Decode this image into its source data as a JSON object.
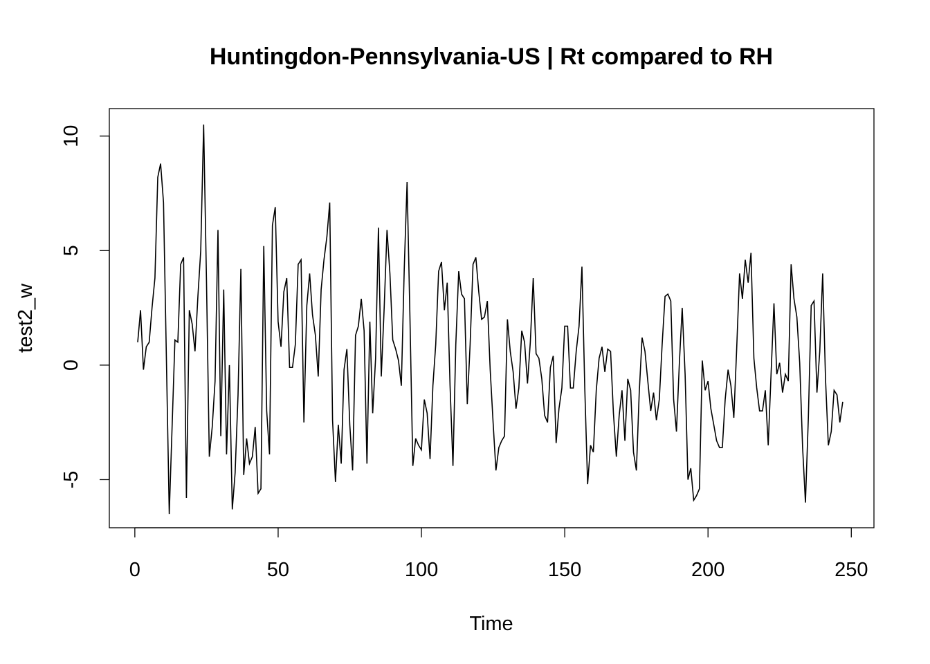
{
  "chart_data": {
    "type": "line",
    "title": "Huntingdon-Pennsylvania-US | Rt compared to RH",
    "xlabel": "Time",
    "ylabel": "test2_w",
    "xlim": [
      -8.9,
      257.9
    ],
    "ylim": [
      -7.1,
      11.2
    ],
    "x_ticks": [
      0,
      50,
      100,
      150,
      200,
      250
    ],
    "x_tick_labels": [
      "0",
      "50",
      "100",
      "150",
      "200",
      "250"
    ],
    "y_ticks": [
      -5,
      0,
      5,
      10
    ],
    "y_tick_labels": [
      "-5",
      "0",
      "5",
      "10"
    ],
    "grid": false,
    "legend": "none",
    "line_color": "#000000",
    "series": [
      {
        "x_start": 1,
        "x_step": 1,
        "values": [
          1.0,
          2.4,
          -0.2,
          0.8,
          1.0,
          2.5,
          3.8,
          8.2,
          8.8,
          7.1,
          0.4,
          -6.5,
          -2.7,
          1.1,
          1.0,
          4.4,
          4.7,
          -5.8,
          2.4,
          1.8,
          0.6,
          3.0,
          5.0,
          10.5,
          3.7,
          -4.0,
          -2.7,
          -0.7,
          5.9,
          -3.1,
          3.3,
          -3.9,
          0.0,
          -6.3,
          -4.7,
          -1.3,
          4.2,
          -4.8,
          -3.2,
          -4.3,
          -4.0,
          -2.7,
          -5.6,
          -5.4,
          5.2,
          -2.0,
          -3.9,
          6.1,
          6.9,
          1.9,
          0.8,
          3.2,
          3.8,
          -0.1,
          -0.1,
          0.9,
          4.4,
          4.6,
          -2.5,
          2.6,
          4.0,
          2.2,
          1.3,
          -0.5,
          3.3,
          4.6,
          5.6,
          7.1,
          -2.4,
          -5.1,
          -2.6,
          -4.3,
          -0.2,
          0.7,
          -2.6,
          -4.6,
          1.3,
          1.7,
          2.9,
          1.5,
          -4.3,
          1.9,
          -2.1,
          0.3,
          6.0,
          -0.5,
          2.5,
          5.9,
          4.0,
          1.1,
          0.7,
          0.2,
          -0.9,
          4.2,
          8.0,
          2.0,
          -4.4,
          -3.2,
          -3.5,
          -3.7,
          -1.5,
          -2.1,
          -4.1,
          -0.9,
          0.9,
          4.1,
          4.5,
          2.4,
          3.6,
          -0.9,
          -4.4,
          0.9,
          4.1,
          3.1,
          2.9,
          -1.7,
          0.9,
          4.4,
          4.7,
          3.2,
          2.0,
          2.1,
          2.8,
          -0.2,
          -2.5,
          -4.6,
          -3.6,
          -3.3,
          -3.1,
          2.0,
          0.6,
          -0.3,
          -1.9,
          -1.0,
          1.5,
          1.0,
          -0.8,
          1.0,
          3.8,
          0.5,
          0.3,
          -0.6,
          -2.2,
          -2.5,
          -0.1,
          0.4,
          -3.4,
          -1.9,
          -1.0,
          1.7,
          1.7,
          -1.0,
          -1.0,
          0.6,
          1.7,
          4.3,
          -1.0,
          -5.2,
          -3.5,
          -3.8,
          -1.1,
          0.3,
          0.8,
          -0.3,
          0.7,
          0.6,
          -2.1,
          -4.0,
          -2.2,
          -1.1,
          -3.3,
          -0.6,
          -1.1,
          -3.8,
          -4.6,
          -1.2,
          1.2,
          0.6,
          -0.7,
          -2.0,
          -1.2,
          -2.4,
          -1.5,
          0.9,
          3.0,
          3.1,
          2.8,
          -1.5,
          -2.9,
          0.1,
          2.5,
          -0.4,
          -5.0,
          -4.5,
          -5.9,
          -5.7,
          -5.4,
          0.2,
          -1.1,
          -0.7,
          -1.9,
          -2.6,
          -3.3,
          -3.6,
          -3.6,
          -1.5,
          -0.2,
          -0.9,
          -2.3,
          0.7,
          4.0,
          2.9,
          4.6,
          3.6,
          4.9,
          0.3,
          -1.0,
          -2.0,
          -2.0,
          -1.1,
          -3.5,
          -0.4,
          2.7,
          -0.4,
          0.1,
          -1.2,
          -0.4,
          -0.7,
          4.4,
          2.9,
          2.1,
          0.1,
          -3.6,
          -6.0,
          -2.3,
          2.6,
          2.8,
          -1.2,
          0.6,
          4.0,
          -0.6,
          -3.5,
          -2.9,
          -1.1,
          -1.3,
          -2.5,
          -1.6
        ]
      }
    ]
  }
}
